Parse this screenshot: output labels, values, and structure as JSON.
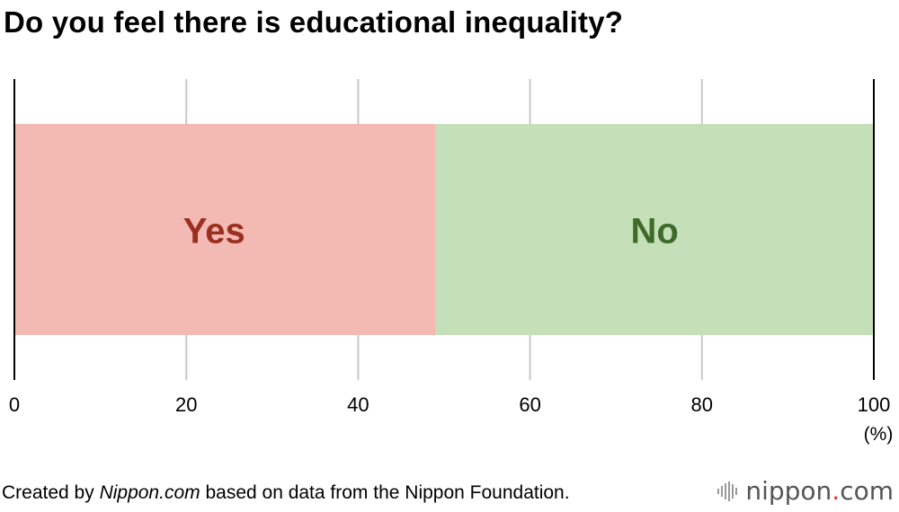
{
  "chart_data": {
    "type": "bar",
    "orientation": "horizontal",
    "stacked": true,
    "title": "Do you feel there is educational inequality?",
    "xlim": [
      0,
      100
    ],
    "xticks": [
      "0",
      "20",
      "40",
      "60",
      "80",
      "100"
    ],
    "xunit": "(%)",
    "grid": true,
    "series": [
      {
        "name": "Yes",
        "value": 49,
        "color": "#f2bab3",
        "label_color": "#9c2e20"
      },
      {
        "name": "No",
        "value": 51,
        "color": "#c5e0b9",
        "label_color": "#3f6b2a"
      }
    ]
  },
  "footer": {
    "source_prefix": "Created by ",
    "source_site": "Nippon.com",
    "source_suffix": " based on data from the Nippon Foundation."
  },
  "brand": {
    "name_main": "nippon",
    "name_dot": ".",
    "name_tld": "com",
    "icon": "sound-bars-icon"
  }
}
